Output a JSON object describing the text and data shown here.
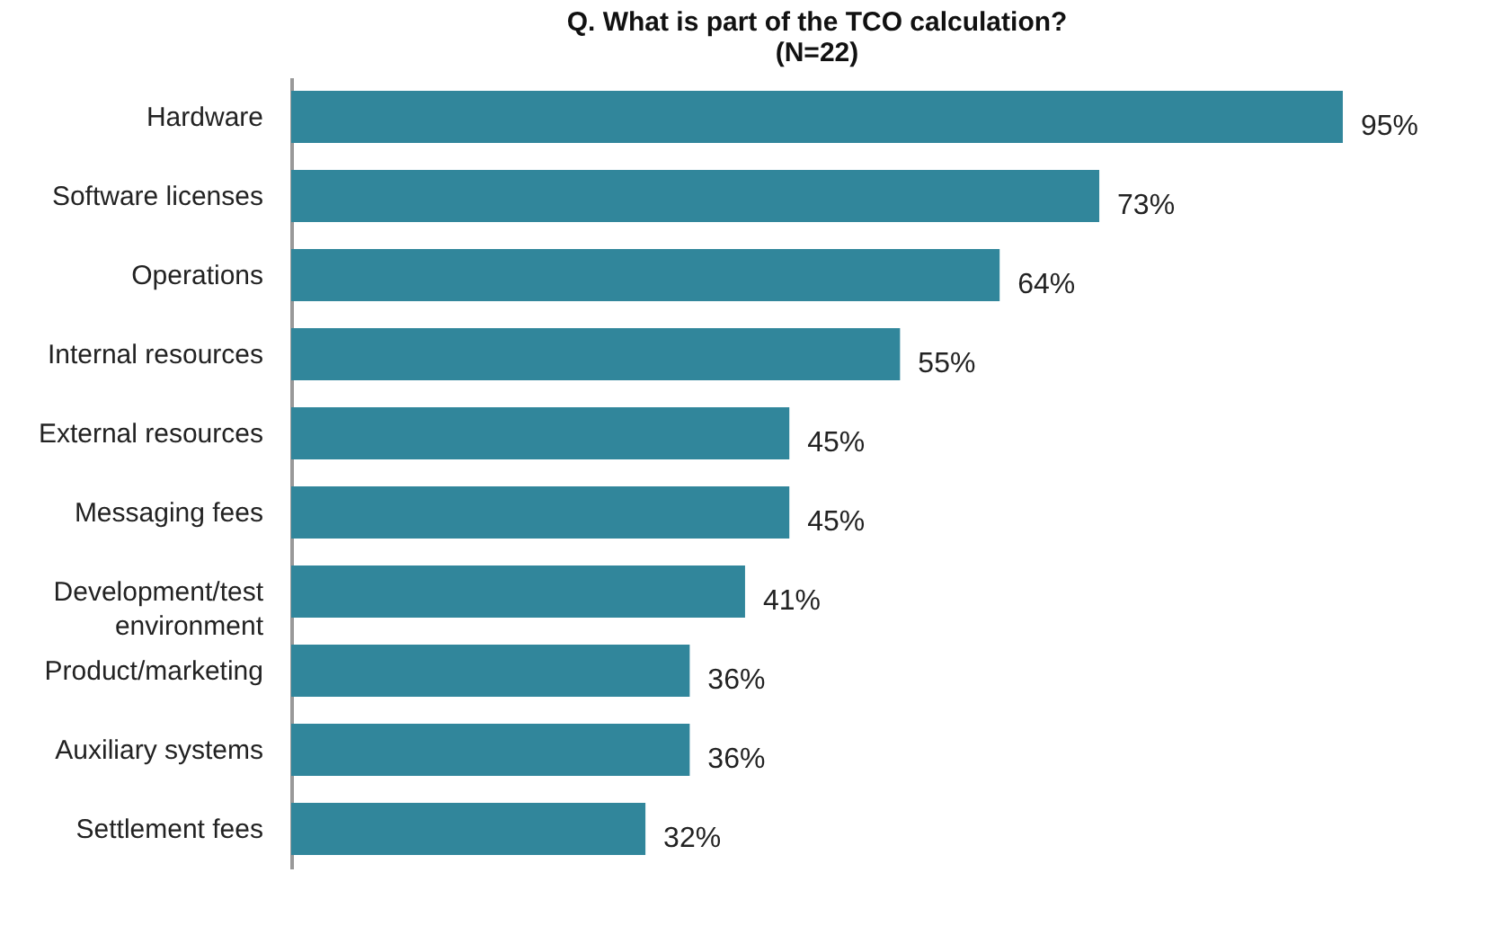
{
  "chart_data": {
    "type": "bar",
    "orientation": "horizontal",
    "title": "Q. What is part of the TCO calculation?",
    "subtitle": "(N=22)",
    "categories": [
      "Hardware",
      "Software licenses",
      "Operations",
      "Internal resources",
      "External resources",
      "Messaging fees",
      "Development/test environment",
      "Product/marketing",
      "Auxiliary systems",
      "Settlement fees"
    ],
    "values": [
      95,
      73,
      64,
      55,
      45,
      45,
      41,
      36,
      36,
      32
    ],
    "value_labels": [
      "95%",
      "73%",
      "64%",
      "55%",
      "45%",
      "45%",
      "41%",
      "36%",
      "36%",
      "32%"
    ],
    "color": "#31869b",
    "grid": false
  }
}
